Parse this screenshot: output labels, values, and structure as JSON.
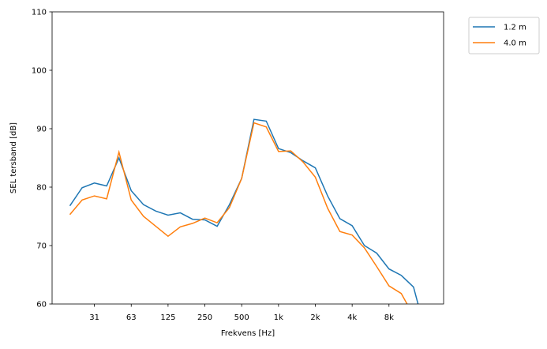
{
  "chart_data": {
    "type": "line",
    "title": "",
    "xlabel": "Frekvens [Hz]",
    "ylabel": "SEL tersband [dB]",
    "ylim": [
      60,
      110
    ],
    "grid": false,
    "legend_placement": "outside-top-right",
    "x": [
      20,
      25,
      31.5,
      40,
      50,
      63,
      80,
      100,
      125,
      160,
      200,
      250,
      315,
      400,
      500,
      630,
      800,
      1000,
      1250,
      1600,
      2000,
      2500,
      3150,
      4000,
      5000,
      6300,
      8000,
      10000,
      12500,
      16000
    ],
    "x_ticks": [
      {
        "index": 2,
        "label": "31"
      },
      {
        "index": 5,
        "label": "63"
      },
      {
        "index": 8,
        "label": "125"
      },
      {
        "index": 11,
        "label": "250"
      },
      {
        "index": 14,
        "label": "500"
      },
      {
        "index": 17,
        "label": "1k"
      },
      {
        "index": 20,
        "label": "2k"
      },
      {
        "index": 23,
        "label": "4k"
      },
      {
        "index": 26,
        "label": "8k"
      }
    ],
    "y_ticks": [
      60,
      70,
      80,
      90,
      100,
      110
    ],
    "series": [
      {
        "name": "1.2 m",
        "color": "#1f77b4",
        "values": [
          76.8,
          79.9,
          80.7,
          80.2,
          85.0,
          79.4,
          77.0,
          75.9,
          75.2,
          75.6,
          74.5,
          74.4,
          73.3,
          77.0,
          81.5,
          91.6,
          91.3,
          86.6,
          85.9,
          84.5,
          83.3,
          78.5,
          74.6,
          73.4,
          70.0,
          68.7,
          66.0,
          64.9,
          62.9,
          55.0
        ]
      },
      {
        "name": "4.0 m",
        "color": "#ff7f0e",
        "values": [
          75.3,
          77.8,
          78.5,
          78.0,
          86.0,
          77.8,
          75.0,
          73.3,
          71.6,
          73.2,
          73.8,
          74.7,
          73.9,
          76.5,
          81.5,
          91.0,
          90.3,
          86.1,
          86.2,
          84.3,
          81.7,
          76.4,
          72.4,
          71.8,
          69.6,
          66.4,
          63.1,
          61.8,
          58.0,
          55.5
        ]
      }
    ]
  }
}
